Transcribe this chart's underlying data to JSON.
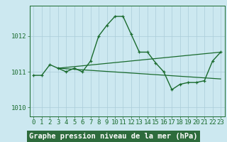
{
  "title": "Graphe pression niveau de la mer (hPa)",
  "bg_color": "#cce8f0",
  "plot_bg_color": "#cce8f0",
  "line_color": "#1a6b2e",
  "grid_color": "#aaccd8",
  "title_bg_color": "#2d6b3c",
  "title_text_color": "#ffffff",
  "hours": [
    0,
    1,
    2,
    3,
    4,
    5,
    6,
    7,
    8,
    9,
    10,
    11,
    12,
    13,
    14,
    15,
    16,
    17,
    18,
    19,
    20,
    21,
    22,
    23
  ],
  "pressure": [
    1010.9,
    1010.9,
    1011.2,
    1011.1,
    1011.0,
    1011.1,
    1011.0,
    1011.3,
    1012.0,
    1012.3,
    1012.55,
    1012.55,
    1012.05,
    1011.55,
    1011.55,
    1011.25,
    1011.0,
    1010.5,
    1010.65,
    1010.7,
    1010.7,
    1010.75,
    1011.3,
    1011.55
  ],
  "trend1_x": [
    3,
    23
  ],
  "trend1_y": [
    1011.1,
    1011.55
  ],
  "trend2_x": [
    3,
    23
  ],
  "trend2_y": [
    1011.1,
    1010.8
  ],
  "ylim": [
    1009.75,
    1012.85
  ],
  "yticks": [
    1010,
    1011,
    1012
  ],
  "xlim": [
    -0.5,
    23.5
  ],
  "title_fontsize": 7.5,
  "tick_fontsize": 6.5
}
